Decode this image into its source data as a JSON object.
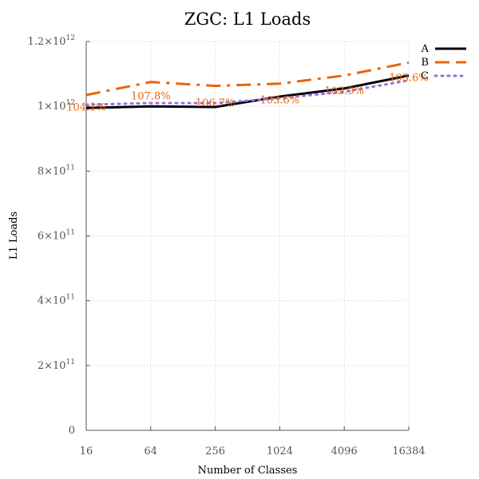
{
  "chart_data": {
    "type": "line",
    "title": "ZGC: L1 Loads",
    "xlabel": "Number of Classes",
    "ylabel": "L1 Loads",
    "x_scale": "log2",
    "categories": [
      "16",
      "64",
      "256",
      "1024",
      "4096",
      "16384"
    ],
    "x": [
      16,
      64,
      256,
      1024,
      4096,
      16384
    ],
    "ylim": [
      0,
      1200000000000.0
    ],
    "y_ticks": [
      {
        "value": 0,
        "base": "0",
        "exp": ""
      },
      {
        "value": 200000000000.0,
        "base": "2×10",
        "exp": "11"
      },
      {
        "value": 400000000000.0,
        "base": "4×10",
        "exp": "11"
      },
      {
        "value": 600000000000.0,
        "base": "6×10",
        "exp": "11"
      },
      {
        "value": 800000000000.0,
        "base": "8×10",
        "exp": "11"
      },
      {
        "value": 1000000000000.0,
        "base": "1×10",
        "exp": "12"
      },
      {
        "value": 1200000000000.0,
        "base": "1.2×10",
        "exp": "12"
      }
    ],
    "grid": true,
    "legend_position": "top-right",
    "series": [
      {
        "name": "A",
        "color": "#000000",
        "style": "solid",
        "values": [
          995000000000.0,
          1000000000000.0,
          998000000000.0,
          1030000000000.0,
          1055000000000.0,
          1095000000000.0
        ]
      },
      {
        "name": "B",
        "color": "#e8650a",
        "style": "dashdot",
        "values": [
          1035000000000.0,
          1075000000000.0,
          1063000000000.0,
          1070000000000.0,
          1095000000000.0,
          1135000000000.0
        ]
      },
      {
        "name": "C",
        "color": "#9b6fe0",
        "style": "dotted",
        "values": [
          1005000000000.0,
          1010000000000.0,
          1010000000000.0,
          1025000000000.0,
          1045000000000.0,
          1080000000000.0
        ]
      }
    ],
    "annotations": [
      {
        "x": 16,
        "y": 999000000000.0,
        "text": "104.1%"
      },
      {
        "x": 64,
        "y": 1034000000000.0,
        "text": "107.8%"
      },
      {
        "x": 256,
        "y": 1013000000000.0,
        "text": "106.7%"
      },
      {
        "x": 1024,
        "y": 1021000000000.0,
        "text": "103.6%"
      },
      {
        "x": 4096,
        "y": 1050000000000.0,
        "text": "103.9%"
      },
      {
        "x": 16384,
        "y": 1090000000000.0,
        "text": "103.6%"
      }
    ]
  }
}
